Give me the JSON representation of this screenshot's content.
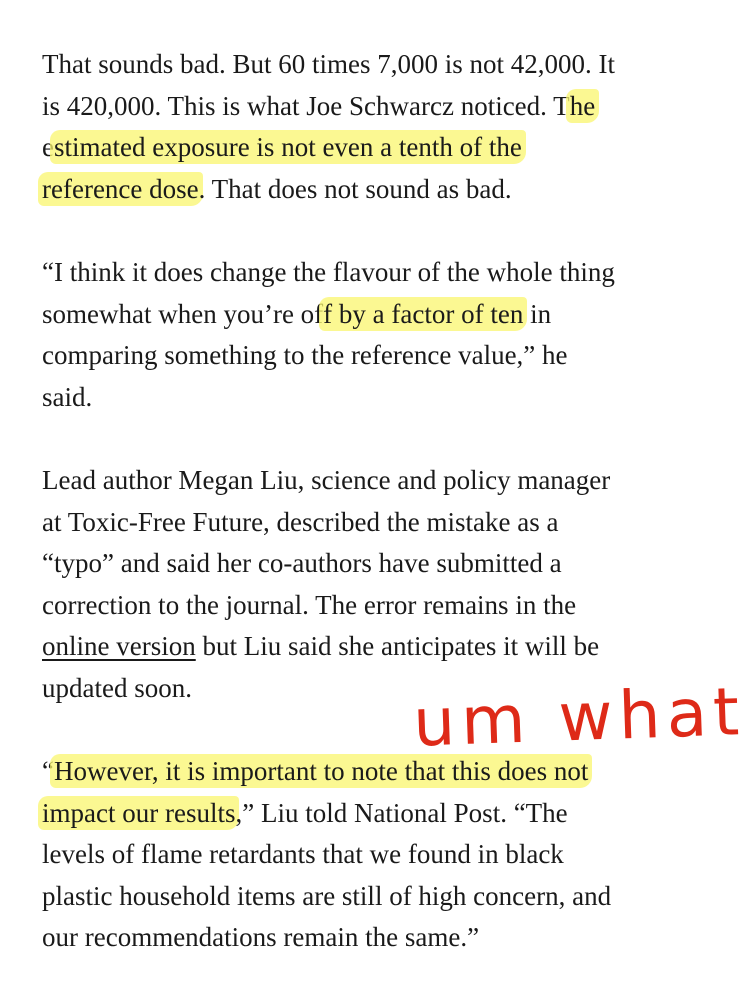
{
  "colors": {
    "highlight": "#faf56e",
    "ink": "#de2a18",
    "text": "#1a1a1a"
  },
  "paragraphs": [
    {
      "lines": [
        [
          {
            "text": "That sounds bad. But 60 times 7,000 is not 42,000. It"
          }
        ],
        [
          {
            "text": "is 420,000. This is what Joe Schwarcz noticed. T"
          },
          {
            "text": "he",
            "hl": true
          }
        ],
        [
          {
            "text": "e"
          },
          {
            "text": "stimated exposure is not even a tenth of the",
            "hl": true
          }
        ],
        [
          {
            "text": "reference dose",
            "hl": true
          },
          {
            "text": ". That does not sound as bad."
          }
        ]
      ]
    },
    {
      "lines": [
        [
          {
            "text": "“I think it does change the flavour of the whole thing"
          }
        ],
        [
          {
            "text": "somewhat when you’re of"
          },
          {
            "text": "f by a factor of ten",
            "hl": true
          },
          {
            "text": " in"
          }
        ],
        [
          {
            "text": "comparing something to the reference value,” he"
          }
        ],
        [
          {
            "text": "said."
          }
        ]
      ]
    },
    {
      "lines": [
        [
          {
            "text": "Lead author Megan Liu, science and policy manager"
          }
        ],
        [
          {
            "text": "at Toxic-Free Future, described the mistake as a"
          }
        ],
        [
          {
            "text": "“typo” and said her co-authors have submitted a"
          }
        ],
        [
          {
            "text": "correction to the journal. The error remains in the"
          }
        ],
        [
          {
            "text": "online version",
            "link": true
          },
          {
            "text": " but Liu said she anticipates it will be"
          }
        ],
        [
          {
            "text": "updated soon."
          }
        ]
      ]
    },
    {
      "lines": [
        [
          {
            "text": "“"
          },
          {
            "text": "However, it is important to note that this does not",
            "hl": true
          }
        ],
        [
          {
            "text": "impact our results",
            "hl": true
          },
          {
            "text": ",” Liu told National Post. “The"
          }
        ],
        [
          {
            "text": "levels of flame retardants that we found in black"
          }
        ],
        [
          {
            "text": "plastic household items are still of high concern, and"
          }
        ],
        [
          {
            "text": "our recommendations remain the same.”"
          }
        ]
      ]
    }
  ],
  "annotation": {
    "text": "um what"
  }
}
